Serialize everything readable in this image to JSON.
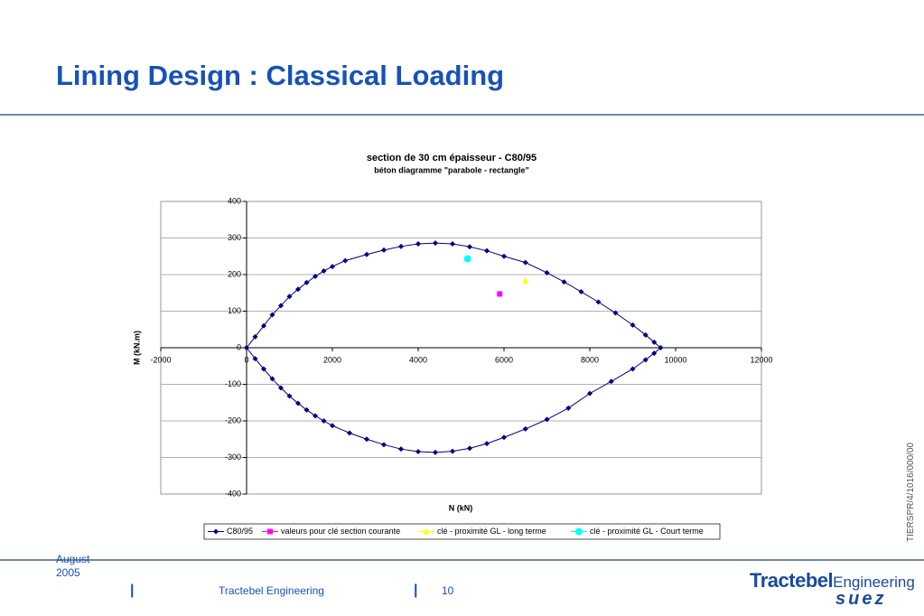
{
  "slide": {
    "title": "Lining Design : Classical Loading",
    "date": "August 2005",
    "company": "Tractebel Engineering",
    "page": "10",
    "side_code": "TIERSPR/4/1016/000/00",
    "logo_brand": "Tractebel",
    "logo_sub": "Engineering",
    "logo_group": "suez"
  },
  "chart_data": {
    "type": "scatter",
    "title": "section de 30 cm épaisseur - C80/95",
    "subtitle": "béton diagramme \"parabole - rectangle\"",
    "x_label": "N (kN)",
    "y_label": "M (kN.m)",
    "xlim": [
      -2000,
      12000
    ],
    "xticks": [
      -2000,
      0,
      2000,
      4000,
      6000,
      8000,
      10000,
      12000
    ],
    "ylim": [
      -400,
      400
    ],
    "yticks": [
      -400,
      -300,
      -200,
      -100,
      0,
      100,
      200,
      300,
      400
    ],
    "grid": true,
    "legend": "bottom",
    "series": [
      {
        "name": "C80/95",
        "color": "#000080",
        "marker": "diamond",
        "line": true,
        "x": [
          0,
          200,
          400,
          600,
          800,
          1000,
          1200,
          1400,
          1600,
          1800,
          2000,
          2300,
          2800,
          3200,
          3600,
          4000,
          4400,
          4800,
          5200,
          5600,
          6000,
          6500,
          7000,
          7400,
          7800,
          8200,
          8600,
          9000,
          9300,
          9500,
          9650,
          9500,
          9300,
          9000,
          8500,
          8000,
          7500,
          7000,
          6500,
          6000,
          5600,
          5200,
          4800,
          4400,
          4000,
          3600,
          3200,
          2800,
          2400,
          2000,
          1800,
          1600,
          1400,
          1200,
          1000,
          800,
          600,
          400,
          200,
          0
        ],
        "values": [
          0,
          30,
          60,
          90,
          115,
          140,
          160,
          178,
          195,
          210,
          222,
          238,
          255,
          267,
          277,
          284,
          286,
          284,
          276,
          265,
          250,
          233,
          205,
          180,
          153,
          125,
          95,
          62,
          35,
          15,
          0,
          -15,
          -33,
          -58,
          -92,
          -125,
          -165,
          -196,
          -222,
          -245,
          -262,
          -275,
          -283,
          -286,
          -284,
          -277,
          -265,
          -250,
          -233,
          -213,
          -200,
          -186,
          -170,
          -152,
          -132,
          -110,
          -85,
          -58,
          -30,
          0
        ]
      },
      {
        "name": "valeurs pour clé section courante",
        "color": "#ff00ff",
        "marker": "square",
        "line": false,
        "x": [
          5900
        ],
        "values": [
          147
        ]
      },
      {
        "name": "clé - proximité GL - long terme",
        "color": "#ffff00",
        "marker": "triangle",
        "line": false,
        "x": [
          6500
        ],
        "values": [
          183
        ]
      },
      {
        "name": "clé - proximité GL - Court terme",
        "color": "#00ffff",
        "marker": "circle",
        "line": false,
        "x": [
          5150
        ],
        "values": [
          243
        ]
      }
    ]
  }
}
